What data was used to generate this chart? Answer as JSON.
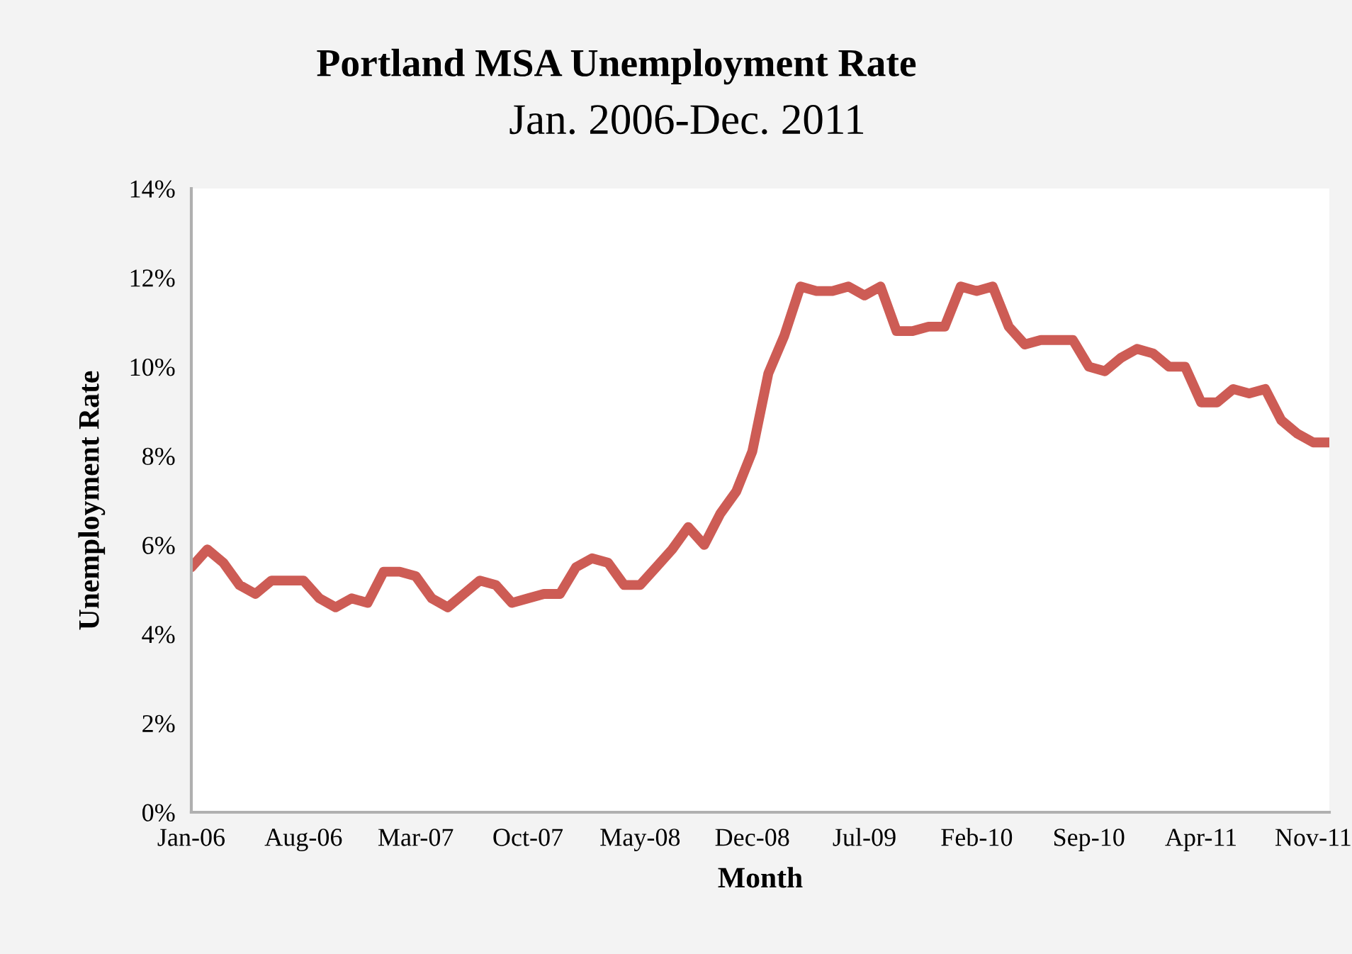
{
  "chart_data": {
    "type": "line",
    "title": "Portland MSA Unemployment Rate",
    "subtitle": "Jan. 2006-Dec. 2011",
    "xlabel": "Month",
    "ylabel": "Unemployment Rate",
    "categories": [
      "Jan-06",
      null,
      null,
      null,
      null,
      null,
      null,
      "Aug-06",
      null,
      null,
      null,
      null,
      null,
      null,
      "Mar-07",
      null,
      null,
      null,
      null,
      null,
      null,
      "Oct-07",
      null,
      null,
      null,
      null,
      null,
      null,
      "May-08",
      null,
      null,
      null,
      null,
      null,
      null,
      "Dec-08",
      null,
      null,
      null,
      null,
      null,
      null,
      "Jul-09",
      null,
      null,
      null,
      null,
      null,
      null,
      "Feb-10",
      null,
      null,
      null,
      null,
      null,
      null,
      "Sep-10",
      null,
      null,
      null,
      null,
      null,
      null,
      "Apr-11",
      null,
      null,
      null,
      null,
      null,
      null,
      "Nov-11",
      null
    ],
    "series": [
      {
        "color": "#cd5c55",
        "values": [
          5.5,
          5.9,
          5.6,
          5.1,
          4.9,
          5.2,
          5.2,
          5.2,
          4.8,
          4.6,
          4.8,
          4.7,
          5.4,
          5.4,
          5.3,
          4.8,
          4.6,
          4.9,
          5.2,
          5.1,
          4.7,
          4.8,
          4.9,
          4.9,
          5.5,
          5.7,
          5.6,
          5.1,
          5.1,
          5.5,
          5.9,
          6.4,
          6.0,
          6.7,
          7.2,
          8.1,
          9.85,
          10.7,
          11.8,
          11.7,
          11.7,
          11.8,
          11.6,
          11.8,
          10.8,
          10.8,
          10.9,
          10.9,
          11.8,
          11.7,
          11.8,
          10.9,
          10.5,
          10.6,
          10.6,
          10.6,
          10.0,
          9.9,
          10.2,
          10.4,
          10.3,
          10.0,
          10.0,
          9.2,
          9.2,
          9.5,
          9.4,
          9.5,
          8.8,
          8.5,
          8.3,
          8.3
        ]
      }
    ],
    "ylim": [
      0,
      14
    ],
    "yticks": [
      {
        "value": 0,
        "label": "0%"
      },
      {
        "value": 2,
        "label": "2%"
      },
      {
        "value": 4,
        "label": "4%"
      },
      {
        "value": 6,
        "label": "6%"
      },
      {
        "value": 8,
        "label": "8%"
      },
      {
        "value": 10,
        "label": "10%"
      },
      {
        "value": 12,
        "label": "12%"
      },
      {
        "value": 14,
        "label": "14%"
      }
    ],
    "grid": false,
    "legend": false,
    "marker": "none",
    "line_style": "solid"
  }
}
